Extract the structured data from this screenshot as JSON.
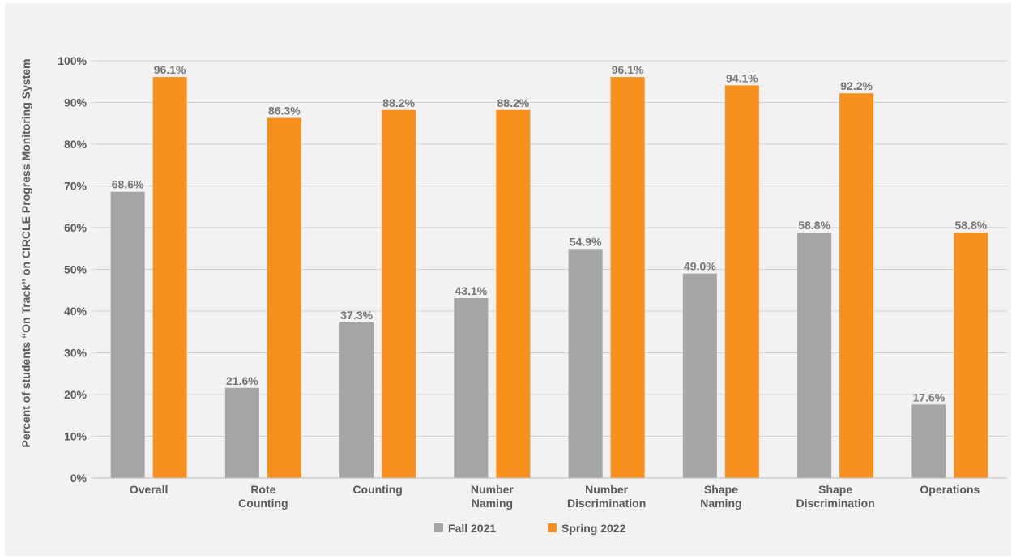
{
  "chart_data": {
    "type": "bar",
    "title": "",
    "xlabel": "",
    "ylabel": "Percent of students “On Track” on CIRCLE Progress Monitoring System",
    "ylim": [
      0,
      100
    ],
    "yticks": [
      "0%",
      "10%",
      "20%",
      "30%",
      "40%",
      "50%",
      "60%",
      "70%",
      "80%",
      "90%",
      "100%"
    ],
    "grid": true,
    "legend_position": "bottom",
    "categories": [
      [
        "Overall"
      ],
      [
        "Rote",
        "Counting"
      ],
      [
        "Counting"
      ],
      [
        "Number",
        "Naming"
      ],
      [
        "Number",
        "Discrimination"
      ],
      [
        "Shape",
        "Naming"
      ],
      [
        "Shape",
        "Discrimination"
      ],
      [
        "Operations"
      ]
    ],
    "series": [
      {
        "name": "Fall 2021",
        "color": "#a5a5a5",
        "values": [
          68.6,
          21.6,
          37.3,
          43.1,
          54.9,
          49.0,
          58.8,
          17.6
        ],
        "labels": [
          "68.6%",
          "21.6%",
          "37.3%",
          "43.1%",
          "54.9%",
          "49.0%",
          "58.8%",
          "17.6%"
        ]
      },
      {
        "name": "Spring 2022",
        "color": "#f7901e",
        "values": [
          96.1,
          86.3,
          88.2,
          88.2,
          96.1,
          94.1,
          92.2,
          58.8
        ],
        "labels": [
          "96.1%",
          "86.3%",
          "88.2%",
          "88.2%",
          "96.1%",
          "94.1%",
          "92.2%",
          "58.8%"
        ]
      }
    ]
  }
}
